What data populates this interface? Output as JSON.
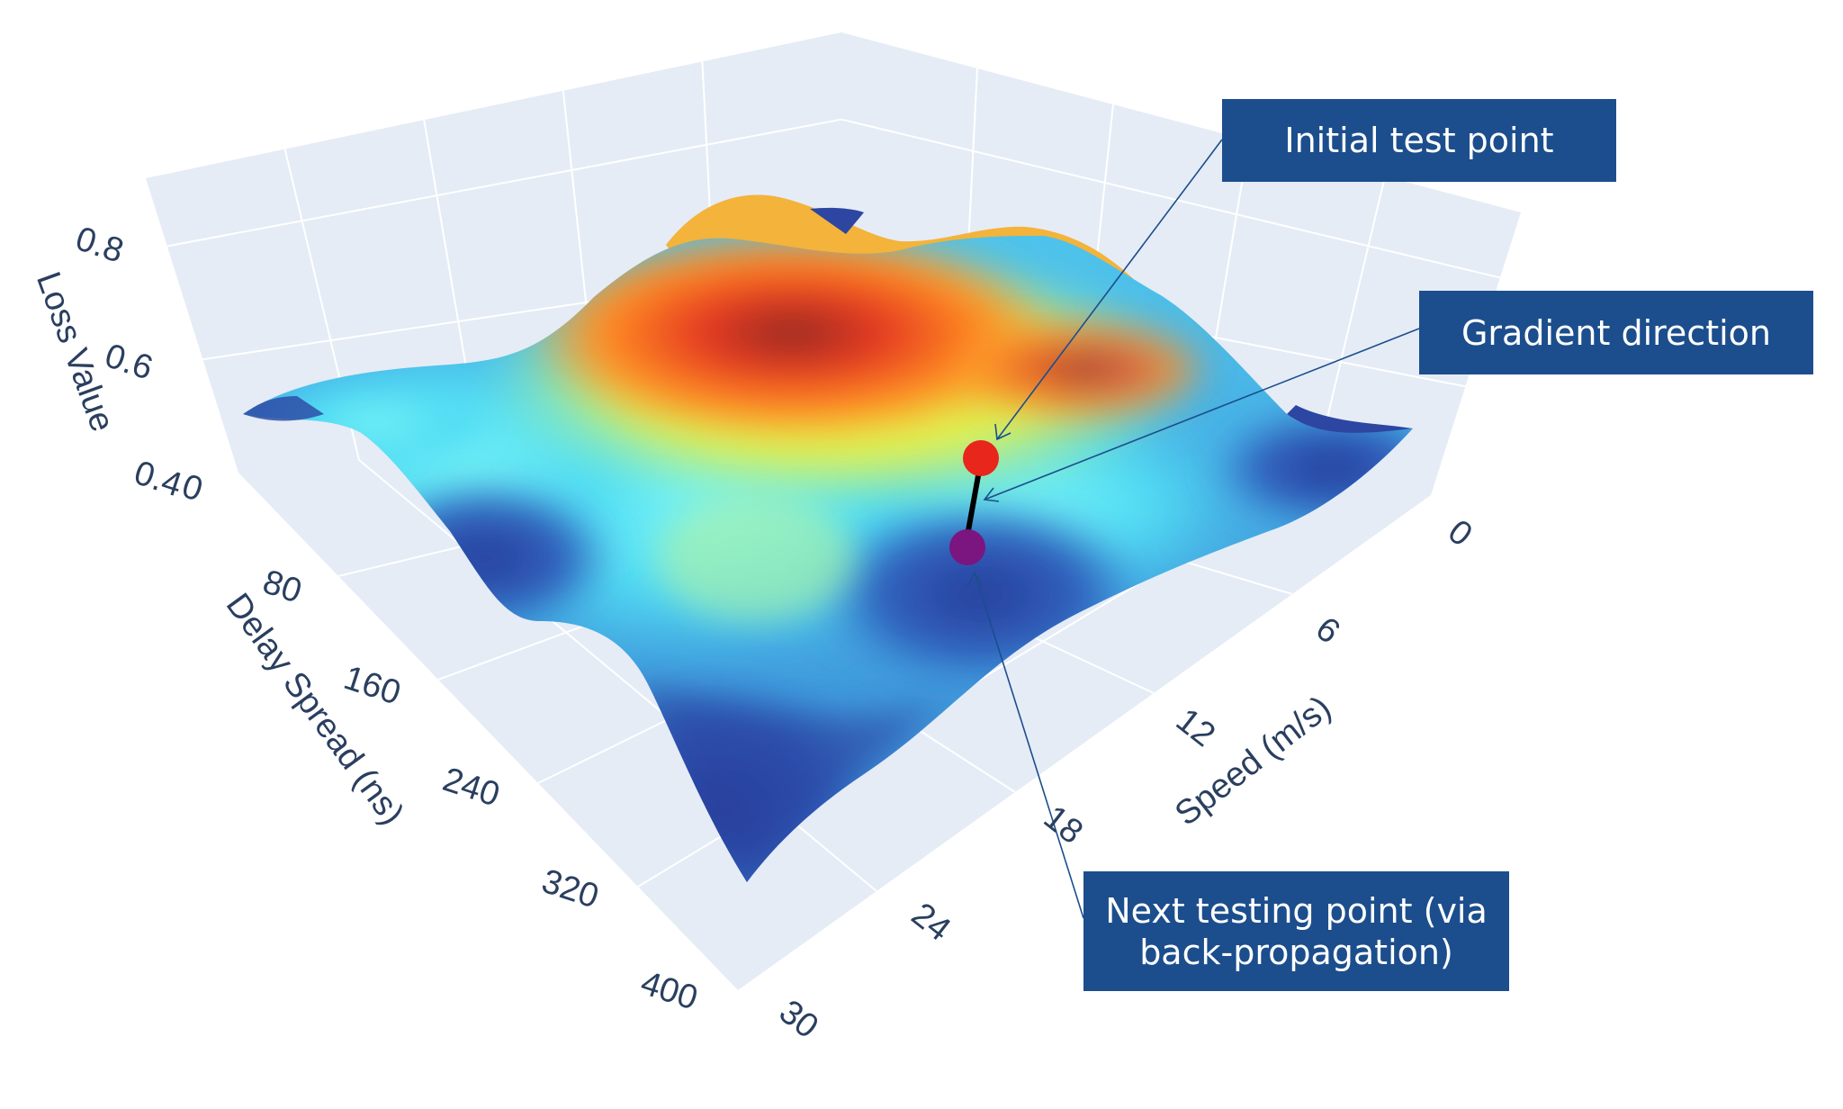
{
  "chart_data": {
    "type": "surface3d",
    "title": "",
    "colorscale": "jet",
    "axes": {
      "x": {
        "label": "Speed (m/s)",
        "ticks": [
          "0",
          "6",
          "12",
          "18",
          "24",
          "30"
        ],
        "range": [
          0,
          30
        ]
      },
      "y": {
        "label": "Delay Spread (ns)",
        "ticks": [
          "0",
          "80",
          "160",
          "240",
          "320",
          "400"
        ],
        "range": [
          0,
          400
        ]
      },
      "z": {
        "label": "Loss Value",
        "ticks": [
          "0.4",
          "0.6",
          "0.8"
        ],
        "range": [
          0.4,
          0.85
        ]
      }
    },
    "grid": true,
    "points": [
      {
        "name": "Initial test point",
        "x": 18,
        "y": 105,
        "z": 0.47,
        "color": "#e8261c"
      },
      {
        "name": "Next testing point",
        "x": 19.5,
        "y": 130,
        "z": 0.38,
        "color": "#7b1580"
      }
    ],
    "gradient_line_color": "#000000",
    "pane_color": "#e5ecf6",
    "grid_color": "#ffffff"
  },
  "annotations": {
    "initial": "Initial test point",
    "gradient": "Gradient direction",
    "next_line1": "Next testing point (via",
    "next_line2": "back-propagation)"
  }
}
